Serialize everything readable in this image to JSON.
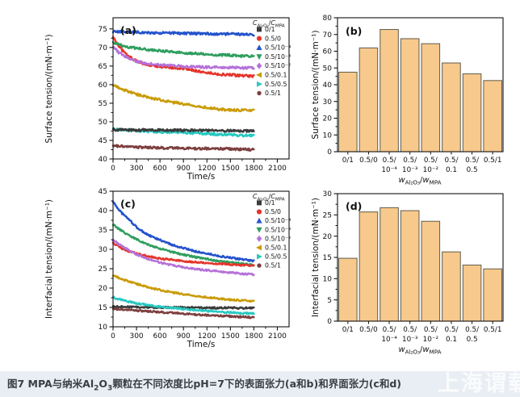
{
  "page": {
    "background": "#ffffff",
    "caption_bar_bg": "#e9edf4"
  },
  "caption": {
    "segments": [
      {
        "t": "图7 MPA与纳米Al"
      },
      {
        "t": "2",
        "sub": true
      },
      {
        "t": "O"
      },
      {
        "t": "3",
        "sub": true
      },
      {
        "t": "颗粒在不同浓度比pH=7下的表面张力(a和b)和界面张力(c和d)"
      }
    ],
    "watermark": "上海谓载"
  },
  "legend": {
    "title_segments": [
      {
        "t": "C",
        "italic": true
      },
      {
        "t": "Al₂O₃",
        "sub": true
      },
      {
        "t": "/"
      },
      {
        "t": "C",
        "italic": true
      },
      {
        "t": "MPA",
        "sub": true
      }
    ],
    "items": [
      {
        "label": "0/1",
        "marker": "square",
        "color": "#3b3b3b"
      },
      {
        "label": "0.5/0",
        "marker": "circle",
        "color": "#e5352b"
      },
      {
        "label": "0.5/10⁻⁴",
        "marker": "triangle-up",
        "color": "#2453cc"
      },
      {
        "label": "0.5/10⁻³",
        "marker": "triangle-down",
        "color": "#2e9e5e"
      },
      {
        "label": "0.5/10⁻²",
        "marker": "diamond",
        "color": "#b571d9"
      },
      {
        "label": "0.5/0.1",
        "marker": "triangle-left",
        "color": "#c99b06"
      },
      {
        "label": "0.5/0.5",
        "marker": "triangle-right",
        "color": "#25c9c1"
      },
      {
        "label": "0.5/1",
        "marker": "dot",
        "color": "#7d3f3f"
      }
    ]
  },
  "chart_data": [
    {
      "id": "a",
      "type": "line",
      "panel_label": "(a)",
      "xlabel": "Time/s",
      "ylabel": "Surface tension/(mN·m⁻¹)",
      "xlim": [
        0,
        2250
      ],
      "xtick_step": 300,
      "xtick_max": 2100,
      "ylim": [
        40,
        78
      ],
      "ytick_min": 40,
      "ytick_max": 75,
      "ytick_step": 5,
      "grid": false,
      "legend_position": "top-right",
      "jitter": 0.32,
      "series": [
        {
          "name": "0.5/0",
          "color": "#e5352b",
          "points": [
            [
              0,
              72.8
            ],
            [
              60,
              70.8
            ],
            [
              120,
              69.2
            ],
            [
              200,
              67.6
            ],
            [
              300,
              66.3
            ],
            [
              400,
              65.6
            ],
            [
              500,
              65.1
            ],
            [
              600,
              64.8
            ],
            [
              750,
              64.6
            ],
            [
              900,
              64.3
            ],
            [
              1050,
              63.8
            ],
            [
              1200,
              63.2
            ],
            [
              1350,
              62.8
            ],
            [
              1500,
              62.6
            ],
            [
              1650,
              62.4
            ],
            [
              1800,
              62.3
            ]
          ]
        },
        {
          "name": "0.5/10⁻⁴",
          "color": "#2453cc",
          "points": [
            [
              0,
              74.3
            ],
            [
              300,
              74.1
            ],
            [
              600,
              73.9
            ],
            [
              900,
              73.8
            ],
            [
              1200,
              73.7
            ],
            [
              1500,
              73.6
            ],
            [
              1800,
              73.5
            ]
          ]
        },
        {
          "name": "0.5/10⁻³",
          "color": "#2e9e5e",
          "points": [
            [
              0,
              71.3
            ],
            [
              100,
              70.6
            ],
            [
              200,
              70.1
            ],
            [
              300,
              69.8
            ],
            [
              450,
              69.4
            ],
            [
              600,
              69.1
            ],
            [
              750,
              68.8
            ],
            [
              900,
              68.6
            ],
            [
              1050,
              68.4
            ],
            [
              1200,
              68.2
            ],
            [
              1350,
              68.0
            ],
            [
              1500,
              67.9
            ],
            [
              1650,
              67.7
            ],
            [
              1800,
              67.6
            ]
          ]
        },
        {
          "name": "0.5/10⁻²",
          "color": "#b571d9",
          "points": [
            [
              0,
              70.2
            ],
            [
              60,
              68.9
            ],
            [
              120,
              67.9
            ],
            [
              200,
              67.0
            ],
            [
              300,
              66.3
            ],
            [
              400,
              65.8
            ],
            [
              500,
              65.5
            ],
            [
              600,
              65.3
            ],
            [
              750,
              65.1
            ],
            [
              900,
              64.9
            ],
            [
              1050,
              64.8
            ],
            [
              1200,
              64.7
            ],
            [
              1500,
              64.6
            ],
            [
              1800,
              64.5
            ]
          ]
        },
        {
          "name": "0.5/0.1",
          "color": "#c99b06",
          "points": [
            [
              0,
              59.8
            ],
            [
              100,
              58.9
            ],
            [
              200,
              58.1
            ],
            [
              300,
              57.4
            ],
            [
              450,
              56.6
            ],
            [
              600,
              55.9
            ],
            [
              750,
              55.3
            ],
            [
              900,
              54.8
            ],
            [
              1050,
              54.3
            ],
            [
              1200,
              53.8
            ],
            [
              1350,
              53.4
            ],
            [
              1500,
              53.2
            ],
            [
              1650,
              53.1
            ],
            [
              1800,
              53.1
            ]
          ]
        },
        {
          "name": "0.5/0.5",
          "color": "#25c9c1",
          "points": [
            [
              0,
              48.0
            ],
            [
              300,
              47.6
            ],
            [
              600,
              47.3
            ],
            [
              900,
              47.1
            ],
            [
              1200,
              46.8
            ],
            [
              1500,
              46.5
            ],
            [
              1800,
              46.2
            ]
          ]
        },
        {
          "name": "0/1",
          "color": "#3b3b3b",
          "points": [
            [
              0,
              47.9
            ],
            [
              300,
              47.8
            ],
            [
              600,
              47.8
            ],
            [
              900,
              47.7
            ],
            [
              1200,
              47.7
            ],
            [
              1500,
              47.6
            ],
            [
              1800,
              47.5
            ]
          ]
        },
        {
          "name": "0.5/1",
          "color": "#7d3f3f",
          "points": [
            [
              0,
              43.5
            ],
            [
              300,
              43.2
            ],
            [
              600,
              43.0
            ],
            [
              900,
              42.9
            ],
            [
              1200,
              42.8
            ],
            [
              1500,
              42.7
            ],
            [
              1800,
              42.5
            ]
          ]
        }
      ]
    },
    {
      "id": "b",
      "type": "bar",
      "panel_label": "(b)",
      "ylabel": "Surface tension/(mN·m⁻¹)",
      "xlabel_segments": [
        {
          "t": "w",
          "italic": true
        },
        {
          "t": "Al₂O₃",
          "sub": true
        },
        {
          "t": "/"
        },
        {
          "t": "w",
          "italic": true
        },
        {
          "t": "MPA",
          "sub": true
        }
      ],
      "ylim": [
        0,
        80
      ],
      "ytick_min": 0,
      "ytick_max": 80,
      "ytick_step": 10,
      "categories": [
        "0/1",
        "0.5/0",
        "0.5/10⁻⁴",
        "0.5/10⁻³",
        "0.5/10⁻²",
        "0.5/0.1",
        "0.5/0.5",
        "0.5/1"
      ],
      "tick_lines": [
        [
          "0/1"
        ],
        [
          "0.5/0"
        ],
        [
          "0.5/",
          "10⁻⁴"
        ],
        [
          "0.5/",
          "10⁻³"
        ],
        [
          "0.5/",
          "10⁻²"
        ],
        [
          "0.5/",
          "0.1"
        ],
        [
          "0.5/",
          "0.5"
        ],
        [
          "0.5/1"
        ]
      ],
      "values": [
        47.5,
        62,
        73,
        67.5,
        64.5,
        53,
        46.5,
        42.5
      ],
      "bar_fill": "#f7c98c",
      "bar_stroke": "#5f5c4d"
    },
    {
      "id": "c",
      "type": "line",
      "panel_label": "(c)",
      "xlabel": "Time/s",
      "ylabel": "Interfacial tension/(mN·m⁻¹)",
      "xlim": [
        0,
        2250
      ],
      "xtick_step": 300,
      "xtick_max": 2100,
      "ylim": [
        10,
        45
      ],
      "ytick_min": 10,
      "ytick_max": 45,
      "ytick_step": 5,
      "grid": false,
      "legend_position": "top-right",
      "jitter": 0.22,
      "series": [
        {
          "name": "0.5/10⁻⁴",
          "color": "#2453cc",
          "points": [
            [
              0,
              42.3
            ],
            [
              60,
              40.6
            ],
            [
              120,
              39.2
            ],
            [
              200,
              37.8
            ],
            [
              300,
              35.7
            ],
            [
              400,
              34.3
            ],
            [
              500,
              33.2
            ],
            [
              600,
              32.4
            ],
            [
              750,
              31.2
            ],
            [
              900,
              30.3
            ],
            [
              1050,
              29.5
            ],
            [
              1200,
              28.9
            ],
            [
              1350,
              28.3
            ],
            [
              1500,
              27.8
            ],
            [
              1650,
              27.4
            ],
            [
              1800,
              27.0
            ]
          ]
        },
        {
          "name": "0.5/10⁻³",
          "color": "#2e9e5e",
          "points": [
            [
              0,
              36.4
            ],
            [
              80,
              35.2
            ],
            [
              160,
              34.1
            ],
            [
              300,
              32.6
            ],
            [
              450,
              31.2
            ],
            [
              600,
              30.2
            ],
            [
              750,
              29.3
            ],
            [
              900,
              28.6
            ],
            [
              1050,
              28.0
            ],
            [
              1200,
              27.5
            ],
            [
              1350,
              27.0
            ],
            [
              1500,
              26.6
            ],
            [
              1650,
              26.3
            ],
            [
              1800,
              26.0
            ]
          ]
        },
        {
          "name": "0.5/0",
          "color": "#e5352b",
          "points": [
            [
              0,
              31.6
            ],
            [
              80,
              30.6
            ],
            [
              160,
              29.8
            ],
            [
              300,
              28.9
            ],
            [
              450,
              28.2
            ],
            [
              600,
              27.6
            ],
            [
              750,
              27.3
            ],
            [
              900,
              27.0
            ],
            [
              1050,
              26.7
            ],
            [
              1200,
              26.5
            ],
            [
              1350,
              26.3
            ],
            [
              1500,
              26.1
            ],
            [
              1650,
              25.9
            ],
            [
              1800,
              25.8
            ]
          ]
        },
        {
          "name": "0.5/10⁻²",
          "color": "#b571d9",
          "points": [
            [
              0,
              32.4
            ],
            [
              80,
              31.2
            ],
            [
              160,
              30.2
            ],
            [
              300,
              28.7
            ],
            [
              450,
              27.5
            ],
            [
              600,
              26.6
            ],
            [
              750,
              25.9
            ],
            [
              900,
              25.4
            ],
            [
              1050,
              24.9
            ],
            [
              1200,
              24.6
            ],
            [
              1350,
              24.3
            ],
            [
              1500,
              24.0
            ],
            [
              1650,
              23.7
            ],
            [
              1800,
              23.5
            ]
          ]
        },
        {
          "name": "0.5/0.1",
          "color": "#c99b06",
          "points": [
            [
              0,
              23.2
            ],
            [
              100,
              22.4
            ],
            [
              200,
              21.7
            ],
            [
              300,
              21.1
            ],
            [
              450,
              20.2
            ],
            [
              600,
              19.5
            ],
            [
              750,
              18.9
            ],
            [
              900,
              18.4
            ],
            [
              1050,
              18.0
            ],
            [
              1200,
              17.6
            ],
            [
              1350,
              17.3
            ],
            [
              1500,
              17.0
            ],
            [
              1650,
              16.8
            ],
            [
              1800,
              16.6
            ]
          ]
        },
        {
          "name": "0/1",
          "color": "#3b3b3b",
          "points": [
            [
              0,
              15.2
            ],
            [
              300,
              15.1
            ],
            [
              600,
              15.0
            ],
            [
              900,
              15.0
            ],
            [
              1200,
              14.9
            ],
            [
              1500,
              14.9
            ],
            [
              1800,
              14.8
            ]
          ]
        },
        {
          "name": "0.5/0.5",
          "color": "#25c9c1",
          "points": [
            [
              0,
              17.6
            ],
            [
              100,
              17.0
            ],
            [
              200,
              16.5
            ],
            [
              300,
              16.1
            ],
            [
              450,
              15.6
            ],
            [
              600,
              15.2
            ],
            [
              750,
              14.9
            ],
            [
              900,
              14.6
            ],
            [
              1050,
              14.3
            ],
            [
              1200,
              14.1
            ],
            [
              1350,
              13.9
            ],
            [
              1500,
              13.7
            ],
            [
              1650,
              13.5
            ],
            [
              1800,
              13.4
            ]
          ]
        },
        {
          "name": "0.5/1",
          "color": "#7d3f3f",
          "points": [
            [
              0,
              14.6
            ],
            [
              300,
              14.2
            ],
            [
              600,
              13.8
            ],
            [
              900,
              13.4
            ],
            [
              1200,
              13.0
            ],
            [
              1500,
              12.7
            ],
            [
              1800,
              12.4
            ]
          ]
        }
      ]
    },
    {
      "id": "d",
      "type": "bar",
      "panel_label": "(d)",
      "ylabel": "Interfacial tension/(mN·m⁻¹)",
      "xlabel_segments": [
        {
          "t": "w",
          "italic": true
        },
        {
          "t": "Al₂O₃",
          "sub": true
        },
        {
          "t": "/"
        },
        {
          "t": "w",
          "italic": true
        },
        {
          "t": "MPA",
          "sub": true
        }
      ],
      "ylim": [
        0,
        30
      ],
      "ytick_min": 0,
      "ytick_max": 30,
      "ytick_step": 5,
      "categories": [
        "0/1",
        "0.5/0",
        "0.5/10⁻⁴",
        "0.5/10⁻³",
        "0.5/10⁻²",
        "0.5/0.1",
        "0.5/0.5",
        "0.5/1"
      ],
      "tick_lines": [
        [
          "0/1"
        ],
        [
          "0.5/0"
        ],
        [
          "0.5/",
          "10⁻⁴"
        ],
        [
          "0.5/",
          "10⁻³"
        ],
        [
          "0.5/",
          "10⁻²"
        ],
        [
          "0.5/",
          "0.1"
        ],
        [
          "0.5/",
          "0.5"
        ],
        [
          "0.5/1"
        ]
      ],
      "values": [
        14.8,
        25.7,
        26.7,
        26.0,
        23.5,
        16.3,
        13.2,
        12.3
      ],
      "bar_fill": "#f7c98c",
      "bar_stroke": "#5f5c4d"
    }
  ]
}
